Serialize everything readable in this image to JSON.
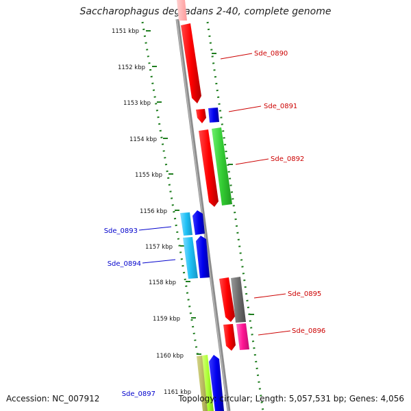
{
  "title": "Saccharophagus degradans 2-40, complete genome",
  "footer": {
    "accession": "Accession: NC_007912",
    "summary": "Topology: circular; Length: 5,057,531 bp; Genes: 4,056"
  },
  "scale": {
    "ticks": [
      "1151 kbp",
      "1152 kbp",
      "1153 kbp",
      "1154 kbp",
      "1155 kbp",
      "1156 kbp",
      "1157 kbp",
      "1158 kbp",
      "1159 kbp",
      "1160 kbp",
      "1161 kbp"
    ]
  },
  "colors": {
    "backbone": "#8c8c8c",
    "tick_dots": "#1e7d1e",
    "forward_label": "#cc0000",
    "reverse_label": "#0000cc"
  },
  "gene_labels": [
    {
      "name": "Sde_0890",
      "strand": "forward"
    },
    {
      "name": "Sde_0891",
      "strand": "forward"
    },
    {
      "name": "Sde_0892",
      "strand": "forward"
    },
    {
      "name": "Sde_0893",
      "strand": "reverse"
    },
    {
      "name": "Sde_0894",
      "strand": "reverse"
    },
    {
      "name": "Sde_0895",
      "strand": "forward"
    },
    {
      "name": "Sde_0896",
      "strand": "forward"
    },
    {
      "name": "Sde_0897",
      "strand": "reverse"
    }
  ]
}
